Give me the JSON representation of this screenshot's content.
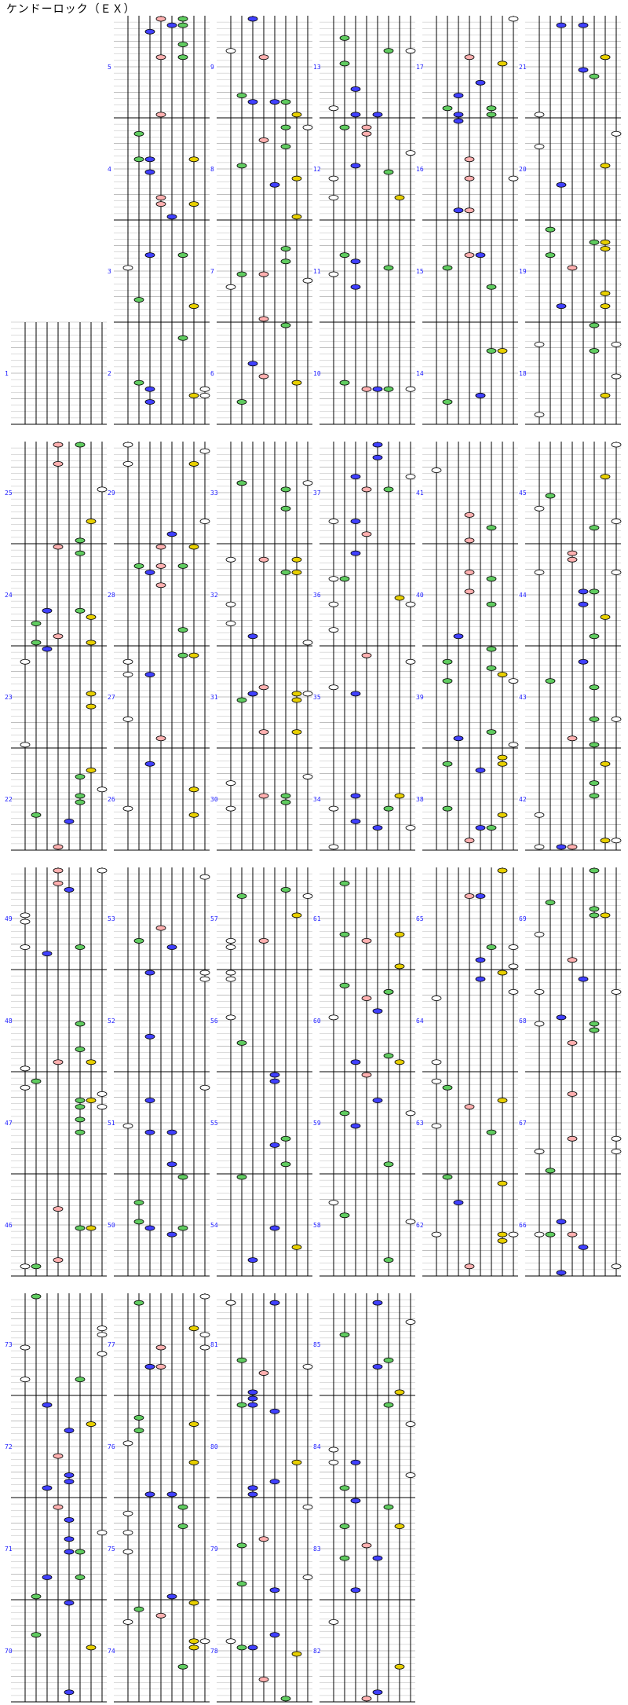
{
  "title": "ケンドーロック（ＥＸ）",
  "colors": {
    "white": "#ffffff",
    "red": "#ffb0b0",
    "blue": "#4040ff",
    "green": "#60cc60",
    "yellow": "#e8d000",
    "line": "#000000",
    "grid": "#aaaaaa",
    "number": "#1a1aff"
  },
  "chart_data": {
    "type": "table",
    "lanes": [
      "white",
      "green",
      "blue",
      "red",
      "blue",
      "green",
      "yellow",
      "white"
    ],
    "measures": [
      {
        "n": 1
      },
      {
        "n": 2
      },
      {
        "n": 3
      },
      {
        "n": 4
      },
      {
        "n": 5
      },
      {
        "n": 6
      },
      {
        "n": 7
      },
      {
        "n": 8
      },
      {
        "n": 9
      },
      {
        "n": 10
      },
      {
        "n": 11
      },
      {
        "n": 12
      },
      {
        "n": 13
      },
      {
        "n": 14
      },
      {
        "n": 15
      },
      {
        "n": 16
      },
      {
        "n": 17
      },
      {
        "n": 18
      },
      {
        "n": 19
      },
      {
        "n": 20
      },
      {
        "n": 21
      },
      {
        "n": 22
      },
      {
        "n": 23
      },
      {
        "n": 24
      },
      {
        "n": 25
      },
      {
        "n": 26
      },
      {
        "n": 27
      },
      {
        "n": 28
      },
      {
        "n": 29
      },
      {
        "n": 30
      },
      {
        "n": 31
      },
      {
        "n": 32
      },
      {
        "n": 33
      },
      {
        "n": 34
      },
      {
        "n": 35
      },
      {
        "n": 36
      },
      {
        "n": 37
      },
      {
        "n": 38
      },
      {
        "n": 39
      },
      {
        "n": 40
      },
      {
        "n": 41
      },
      {
        "n": 42
      },
      {
        "n": 43
      },
      {
        "n": 44
      },
      {
        "n": 45
      },
      {
        "n": 46
      },
      {
        "n": 47
      },
      {
        "n": 48
      },
      {
        "n": 49
      },
      {
        "n": 50
      },
      {
        "n": 51
      },
      {
        "n": 52
      },
      {
        "n": 53
      },
      {
        "n": 54
      },
      {
        "n": 55
      },
      {
        "n": 56
      },
      {
        "n": 57
      },
      {
        "n": 58
      },
      {
        "n": 59
      },
      {
        "n": 60
      },
      {
        "n": 61
      },
      {
        "n": 62
      },
      {
        "n": 63
      },
      {
        "n": 64
      },
      {
        "n": 65
      },
      {
        "n": 66
      },
      {
        "n": 67
      },
      {
        "n": 68
      },
      {
        "n": 69
      },
      {
        "n": 70
      },
      {
        "n": 71
      },
      {
        "n": 72
      },
      {
        "n": 73
      },
      {
        "n": 74
      },
      {
        "n": 75
      },
      {
        "n": 76
      },
      {
        "n": 77
      },
      {
        "n": 78
      },
      {
        "n": 79
      },
      {
        "n": 80
      },
      {
        "n": 81
      },
      {
        "n": 82
      },
      {
        "n": 83
      },
      {
        "n": 84
      },
      {
        "n": 85
      }
    ]
  }
}
